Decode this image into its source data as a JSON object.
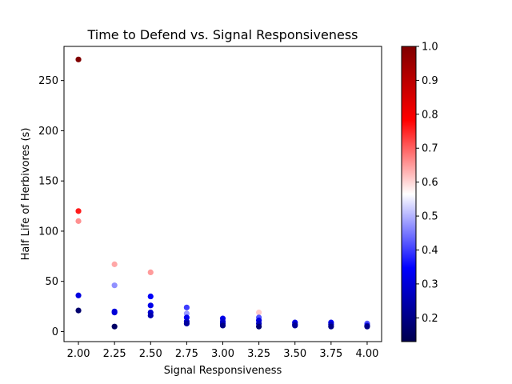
{
  "chart_data": {
    "type": "scatter",
    "title": "Time to Defend vs. Signal Responsiveness",
    "xlabel": "Signal Responsiveness",
    "ylabel": "Half Life of Herbivores (s)",
    "xlim": [
      1.9,
      4.1
    ],
    "ylim": [
      -10,
      284
    ],
    "x_ticks": [
      2.0,
      2.25,
      2.5,
      2.75,
      3.0,
      3.25,
      3.5,
      3.75,
      4.0
    ],
    "x_tick_labels": [
      "2.00",
      "2.25",
      "2.50",
      "2.75",
      "3.00",
      "3.25",
      "3.50",
      "3.75",
      "4.00"
    ],
    "y_ticks": [
      0,
      50,
      100,
      150,
      200,
      250
    ],
    "y_tick_labels": [
      "0",
      "50",
      "100",
      "150",
      "200",
      "250"
    ],
    "grid": false,
    "colormap": "seismic",
    "colorbar": {
      "min": 0.13,
      "max": 1.0,
      "ticks": [
        0.2,
        0.3,
        0.4,
        0.5,
        0.6,
        0.7,
        0.8,
        0.9,
        1.0
      ],
      "tick_labels": [
        "0.2",
        "0.3",
        "0.4",
        "0.5",
        "0.6",
        "0.7",
        "0.8",
        "0.9",
        "1.0"
      ]
    },
    "points": [
      {
        "x": 2.0,
        "y": 271,
        "c": 1.0
      },
      {
        "x": 2.0,
        "y": 120,
        "c": 0.76
      },
      {
        "x": 2.0,
        "y": 110,
        "c": 0.66
      },
      {
        "x": 2.0,
        "y": 36,
        "c": 0.31
      },
      {
        "x": 2.0,
        "y": 21,
        "c": 0.17
      },
      {
        "x": 2.25,
        "y": 67,
        "c": 0.64
      },
      {
        "x": 2.25,
        "y": 46,
        "c": 0.47
      },
      {
        "x": 2.25,
        "y": 20,
        "c": 0.31
      },
      {
        "x": 2.25,
        "y": 19,
        "c": 0.3
      },
      {
        "x": 2.25,
        "y": 5,
        "c": 0.16
      },
      {
        "x": 2.5,
        "y": 59,
        "c": 0.65
      },
      {
        "x": 2.5,
        "y": 35,
        "c": 0.34
      },
      {
        "x": 2.5,
        "y": 26,
        "c": 0.32
      },
      {
        "x": 2.5,
        "y": 19,
        "c": 0.29
      },
      {
        "x": 2.5,
        "y": 16,
        "c": 0.25
      },
      {
        "x": 2.75,
        "y": 24,
        "c": 0.4
      },
      {
        "x": 2.75,
        "y": 18,
        "c": 0.48
      },
      {
        "x": 2.75,
        "y": 14,
        "c": 0.33
      },
      {
        "x": 2.75,
        "y": 10,
        "c": 0.28
      },
      {
        "x": 2.75,
        "y": 8,
        "c": 0.23
      },
      {
        "x": 3.0,
        "y": 13,
        "c": 0.32
      },
      {
        "x": 3.0,
        "y": 10,
        "c": 0.29
      },
      {
        "x": 3.0,
        "y": 8,
        "c": 0.27
      },
      {
        "x": 3.0,
        "y": 6,
        "c": 0.2
      },
      {
        "x": 3.25,
        "y": 19,
        "c": 0.61
      },
      {
        "x": 3.25,
        "y": 14,
        "c": 0.42
      },
      {
        "x": 3.25,
        "y": 11,
        "c": 0.31
      },
      {
        "x": 3.25,
        "y": 8,
        "c": 0.27
      },
      {
        "x": 3.25,
        "y": 5,
        "c": 0.18
      },
      {
        "x": 3.5,
        "y": 9,
        "c": 0.31
      },
      {
        "x": 3.5,
        "y": 7,
        "c": 0.27
      },
      {
        "x": 3.5,
        "y": 6,
        "c": 0.22
      },
      {
        "x": 3.75,
        "y": 9,
        "c": 0.33
      },
      {
        "x": 3.75,
        "y": 7,
        "c": 0.27
      },
      {
        "x": 3.75,
        "y": 5,
        "c": 0.2
      },
      {
        "x": 4.0,
        "y": 8,
        "c": 0.42
      },
      {
        "x": 4.0,
        "y": 6,
        "c": 0.3
      },
      {
        "x": 4.0,
        "y": 5,
        "c": 0.2
      }
    ]
  }
}
